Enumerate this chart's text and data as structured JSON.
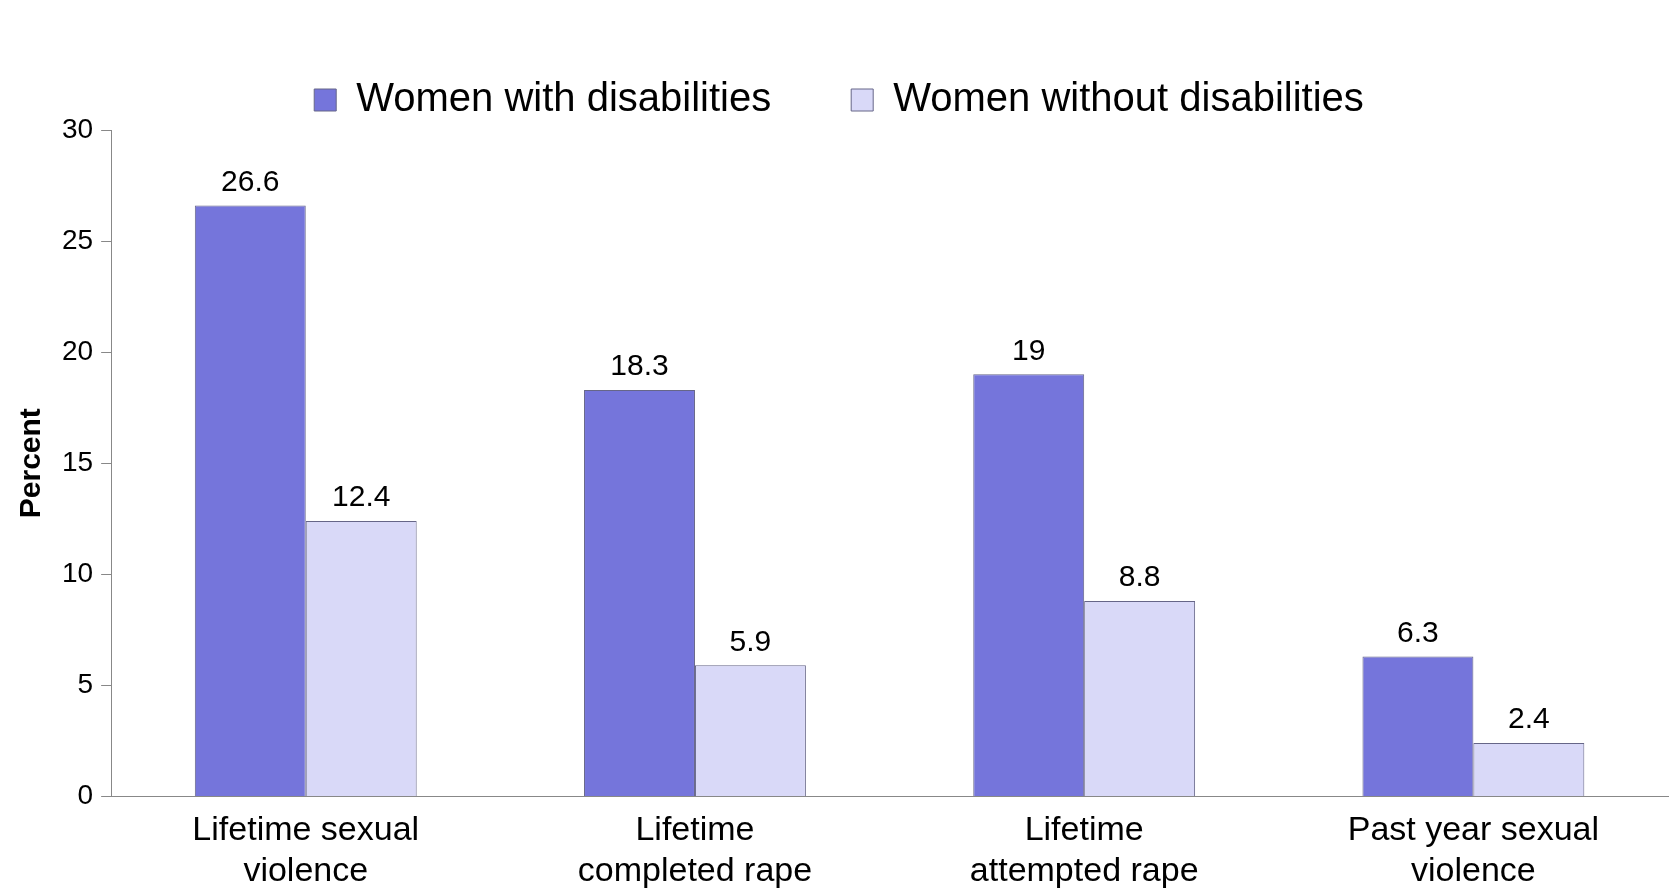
{
  "chart_data": {
    "type": "bar",
    "ylabel": "Percent",
    "categories": [
      "Lifetime sexual\nviolence",
      "Lifetime\ncompleted rape",
      "Lifetime\nattempted rape",
      "Past year sexual\nviolence"
    ],
    "series": [
      {
        "name": "Women with disabilities",
        "color": "#7575db",
        "values": [
          26.6,
          18.3,
          19,
          6.3
        ]
      },
      {
        "name": "Women without disabilities",
        "color": "#d9d9f8",
        "values": [
          12.4,
          5.9,
          8.8,
          2.4
        ]
      }
    ],
    "ylim": [
      0,
      30
    ],
    "yticks": [
      0,
      5,
      10,
      15,
      20,
      25,
      30
    ],
    "grid": false,
    "legend": "top",
    "data_labels": true
  }
}
